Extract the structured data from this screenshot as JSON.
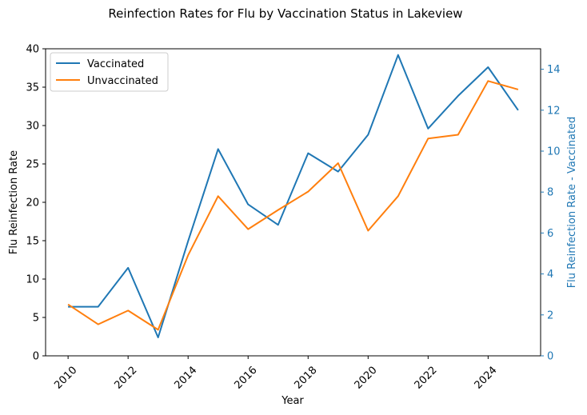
{
  "chart_data": {
    "type": "line",
    "title": "Reinfection Rates for Flu by Vaccination Status in Lakeview",
    "xlabel": "Year",
    "ylabel_left": "Flu Reinfection Rate",
    "ylabel_right": "Flu Reinfection Rate - Vaccinated",
    "x": [
      2010,
      2011,
      2012,
      2013,
      2014,
      2015,
      2016,
      2017,
      2018,
      2019,
      2020,
      2021,
      2022,
      2023,
      2024,
      2025
    ],
    "x_ticks": [
      "2010",
      "2012",
      "2014",
      "2016",
      "2018",
      "2020",
      "2022",
      "2024"
    ],
    "xlim": [
      2009.25,
      2025.75
    ],
    "ylim_left": [
      0,
      40
    ],
    "yticks_left": [
      "0",
      "5",
      "10",
      "15",
      "20",
      "25",
      "30",
      "35",
      "40"
    ],
    "ylim_right": [
      0,
      15
    ],
    "yticks_right": [
      "0",
      "2",
      "4",
      "6",
      "8",
      "10",
      "12",
      "14"
    ],
    "grid": false,
    "legend_position": "top-left",
    "series": [
      {
        "name": "Vaccinated",
        "axis": "right",
        "color": "#1f77b4",
        "values": [
          2.4,
          2.4,
          4.3,
          0.9,
          5.6,
          10.1,
          7.4,
          6.4,
          9.9,
          9.0,
          10.8,
          14.7,
          11.1,
          12.7,
          14.1,
          12.0
        ]
      },
      {
        "name": "Unvaccinated",
        "axis": "left",
        "color": "#ff7f0e",
        "values": [
          6.7,
          4.1,
          5.9,
          3.4,
          13.1,
          20.8,
          16.5,
          19.0,
          21.4,
          25.1,
          16.3,
          20.8,
          28.3,
          28.8,
          35.8,
          34.7
        ]
      }
    ]
  }
}
